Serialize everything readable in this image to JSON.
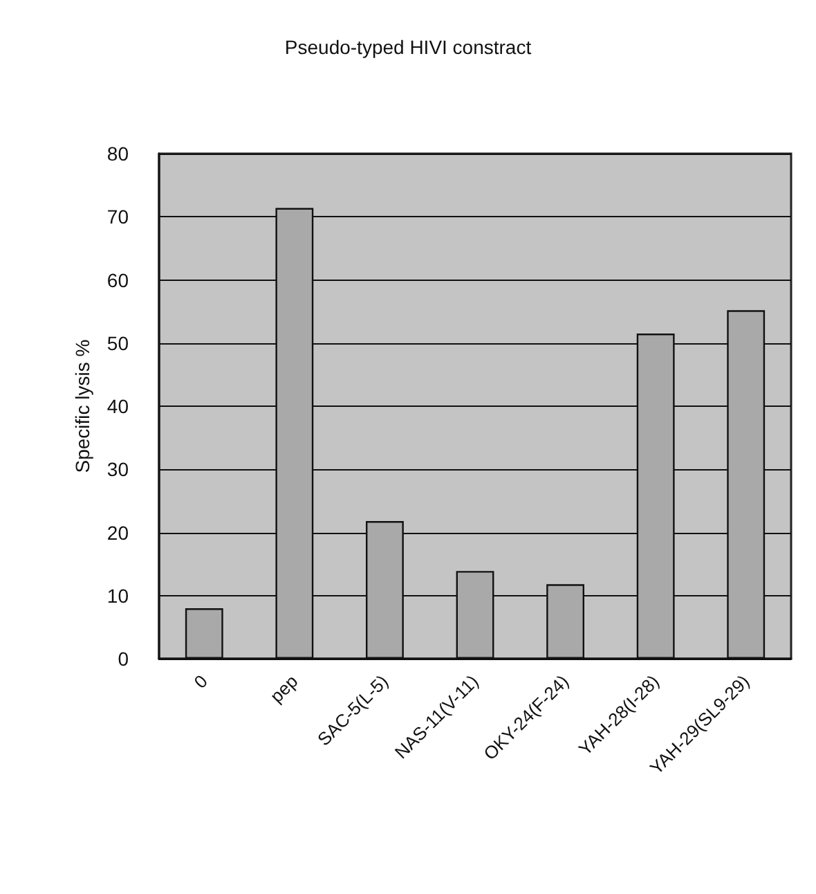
{
  "chart_data": {
    "type": "bar",
    "title": "Pseudo-typed HIVI constract",
    "ylabel": "Specific lysis %",
    "categories": [
      "0",
      "pep",
      "SAC-5(L-5)",
      "NAS-11(V-11)",
      "OKY-24(F-24)",
      "YAH-28(I-28)",
      "YAH-29(SL9-29)"
    ],
    "values": [
      8,
      71.4,
      21.8,
      13.9,
      11.8,
      51.5,
      55.2
    ],
    "color": "#a9a9a9",
    "ylim": [
      0,
      80
    ],
    "yticks": [
      0,
      10,
      20,
      30,
      40,
      50,
      60,
      70,
      80
    ],
    "grid": "y"
  }
}
